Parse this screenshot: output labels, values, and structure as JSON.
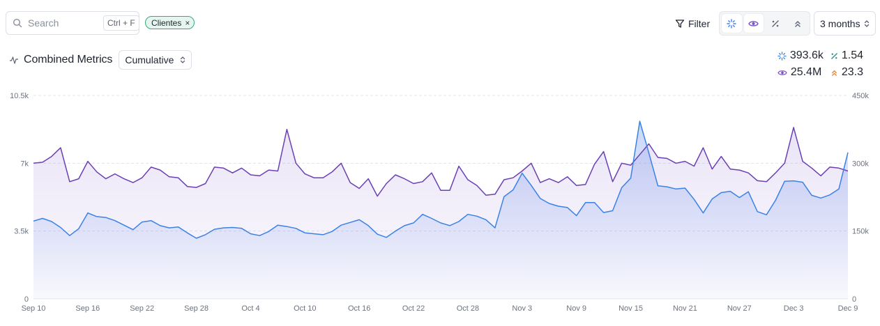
{
  "search": {
    "placeholder": "Search",
    "shortcut": "Ctrl + F"
  },
  "filter_chip": {
    "label": "Clientes",
    "close": "×"
  },
  "toolbar": {
    "filter_label": "Filter",
    "toggles": [
      {
        "icon": "sparkle-icon",
        "active": true,
        "color": "#3b82f6"
      },
      {
        "icon": "eye-icon",
        "active": true,
        "color": "#7b52c7"
      },
      {
        "icon": "percent-icon",
        "active": false,
        "color": "#5b6270"
      },
      {
        "icon": "chevrons-up-icon",
        "active": false,
        "color": "#5b6270"
      }
    ],
    "range_label": "3 months"
  },
  "header": {
    "title": "Combined Metrics",
    "mode_label": "Cumulative"
  },
  "summary": [
    {
      "icon": "sparkle-icon",
      "value": "393.6k",
      "color": "#3b82f6"
    },
    {
      "icon": "percent-icon",
      "value": "1.54",
      "color": "#2f8f8a"
    },
    {
      "icon": "eye-icon",
      "value": "25.4M",
      "color": "#7b52c7"
    },
    {
      "icon": "chevrons-up-icon",
      "value": "23.3",
      "color": "#e8862a"
    }
  ],
  "colors": {
    "series_a": "#6a3fb5",
    "series_b": "#3b82e6",
    "grid": "#e2e4e8"
  },
  "chart_data": {
    "type": "area",
    "x_ticks": [
      "Sep 10",
      "Sep 16",
      "Sep 22",
      "Sep 28",
      "Oct 4",
      "Oct 10",
      "Oct 16",
      "Oct 22",
      "Oct 28",
      "Nov 3",
      "Nov 9",
      "Nov 15",
      "Nov 21",
      "Nov 27",
      "Dec 3",
      "Dec 9"
    ],
    "y_left_ticks": [
      "0",
      "3.5k",
      "7k",
      "10.5k"
    ],
    "y_right_ticks": [
      "0",
      "150k",
      "300k",
      "450k"
    ],
    "y_left_range": [
      0,
      10500
    ],
    "y_right_range": [
      0,
      450000
    ],
    "grid": true,
    "series": [
      {
        "axis": "left",
        "values": [
          7000,
          7050,
          7350,
          7800,
          6050,
          6200,
          7100,
          6550,
          6200,
          6450,
          6200,
          6000,
          6250,
          6800,
          6650,
          6300,
          6250,
          5800,
          5750,
          5950,
          6800,
          6750,
          6500,
          6750,
          6400,
          6350,
          6650,
          6600,
          8750,
          7000,
          6450,
          6250,
          6250,
          6550,
          7000,
          6000,
          5700,
          6200,
          5300,
          5950,
          6400,
          6200,
          5950,
          6050,
          6500,
          5600,
          5600,
          6850,
          6150,
          5850,
          5350,
          5400,
          6150,
          6250,
          6600,
          7000,
          6000,
          6200,
          6000,
          6300,
          5850,
          5900,
          6950,
          7600,
          6050,
          7000,
          6900,
          7450,
          8000,
          7300,
          7250,
          7000,
          7100,
          6850,
          7800,
          6700,
          7350,
          6700,
          6650,
          6500,
          6100,
          6050,
          6500,
          7000,
          8850,
          7100,
          6750,
          6350,
          6800,
          6750,
          6600
        ]
      },
      {
        "axis": "right",
        "values": [
          172000,
          178000,
          171000,
          158000,
          140000,
          155000,
          190000,
          182000,
          180000,
          173000,
          163000,
          153000,
          170000,
          173000,
          162000,
          157000,
          159000,
          146000,
          134000,
          142000,
          154000,
          157000,
          158000,
          156000,
          144000,
          140000,
          149000,
          163000,
          160000,
          156000,
          146000,
          144000,
          142000,
          149000,
          163000,
          169000,
          175000,
          162000,
          143000,
          136000,
          150000,
          162000,
          168000,
          187000,
          178000,
          168000,
          162000,
          171000,
          187000,
          183000,
          175000,
          157000,
          226000,
          241000,
          278000,
          251000,
          222000,
          211000,
          205000,
          202000,
          184000,
          213000,
          213000,
          191000,
          195000,
          246000,
          267000,
          393000,
          323000,
          250000,
          248000,
          243000,
          245000,
          220000,
          190000,
          221000,
          235000,
          238000,
          224000,
          237000,
          193000,
          186000,
          218000,
          260000,
          261000,
          258000,
          229000,
          223000,
          230000,
          243000,
          324000
        ]
      }
    ]
  }
}
